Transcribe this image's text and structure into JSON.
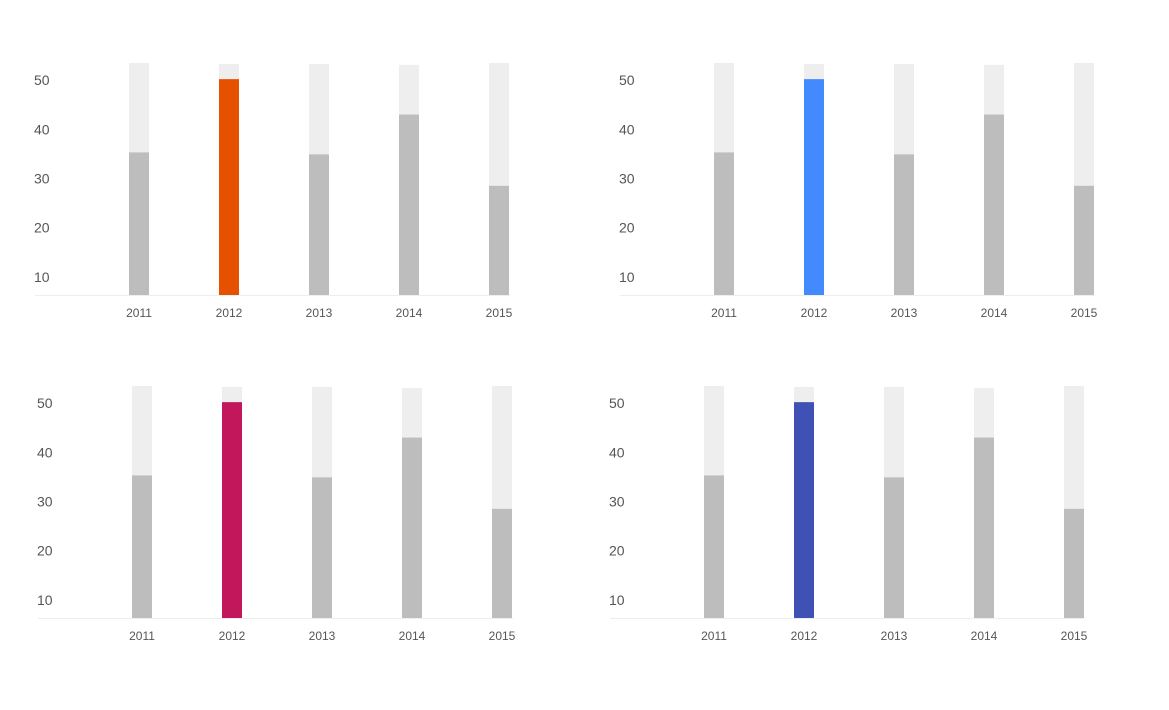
{
  "chart_data": [
    {
      "type": "bar",
      "categories": [
        "2011",
        "2012",
        "2013",
        "2014",
        "2015"
      ],
      "y_ticks": [
        "10",
        "20",
        "30",
        "40",
        "50"
      ],
      "ylim": [
        6.3,
        54.5
      ],
      "bars": [
        {
          "total": 53.5,
          "value": 35.3
        },
        {
          "total": 53.3,
          "value": 50.2
        },
        {
          "total": 53.3,
          "value": 34.9
        },
        {
          "total": 53.1,
          "value": 43.0
        },
        {
          "total": 53.5,
          "value": 28.5
        }
      ],
      "highlight_index": 1,
      "highlight_color": "#e65100",
      "bar_color": "#bdbdbd",
      "track_color": "#eeeeee",
      "grid": false
    },
    {
      "type": "bar",
      "categories": [
        "2011",
        "2012",
        "2013",
        "2014",
        "2015"
      ],
      "y_ticks": [
        "10",
        "20",
        "30",
        "40",
        "50"
      ],
      "ylim": [
        6.3,
        54.5
      ],
      "bars": [
        {
          "total": 53.5,
          "value": 35.3
        },
        {
          "total": 53.3,
          "value": 50.2
        },
        {
          "total": 53.3,
          "value": 34.9
        },
        {
          "total": 53.1,
          "value": 43.0
        },
        {
          "total": 53.5,
          "value": 28.5
        }
      ],
      "highlight_index": 1,
      "highlight_color": "#448aff",
      "bar_color": "#bdbdbd",
      "track_color": "#eeeeee",
      "grid": false
    },
    {
      "type": "bar",
      "categories": [
        "2011",
        "2012",
        "2013",
        "2014",
        "2015"
      ],
      "y_ticks": [
        "10",
        "20",
        "30",
        "40",
        "50"
      ],
      "ylim": [
        6.3,
        54.5
      ],
      "bars": [
        {
          "total": 53.5,
          "value": 35.3
        },
        {
          "total": 53.3,
          "value": 50.2
        },
        {
          "total": 53.3,
          "value": 34.9
        },
        {
          "total": 53.1,
          "value": 43.0
        },
        {
          "total": 53.5,
          "value": 28.5
        }
      ],
      "highlight_index": 1,
      "highlight_color": "#c2185b",
      "bar_color": "#bdbdbd",
      "track_color": "#eeeeee",
      "grid": false
    },
    {
      "type": "bar",
      "categories": [
        "2011",
        "2012",
        "2013",
        "2014",
        "2015"
      ],
      "y_ticks": [
        "10",
        "20",
        "30",
        "40",
        "50"
      ],
      "ylim": [
        6.3,
        54.5
      ],
      "bars": [
        {
          "total": 53.5,
          "value": 35.3
        },
        {
          "total": 53.3,
          "value": 50.2
        },
        {
          "total": 53.3,
          "value": 34.9
        },
        {
          "total": 53.1,
          "value": 43.0
        },
        {
          "total": 53.5,
          "value": 28.5
        }
      ],
      "highlight_index": 1,
      "highlight_color": "#3f51b5",
      "bar_color": "#bdbdbd",
      "track_color": "#eeeeee",
      "grid": false
    }
  ]
}
